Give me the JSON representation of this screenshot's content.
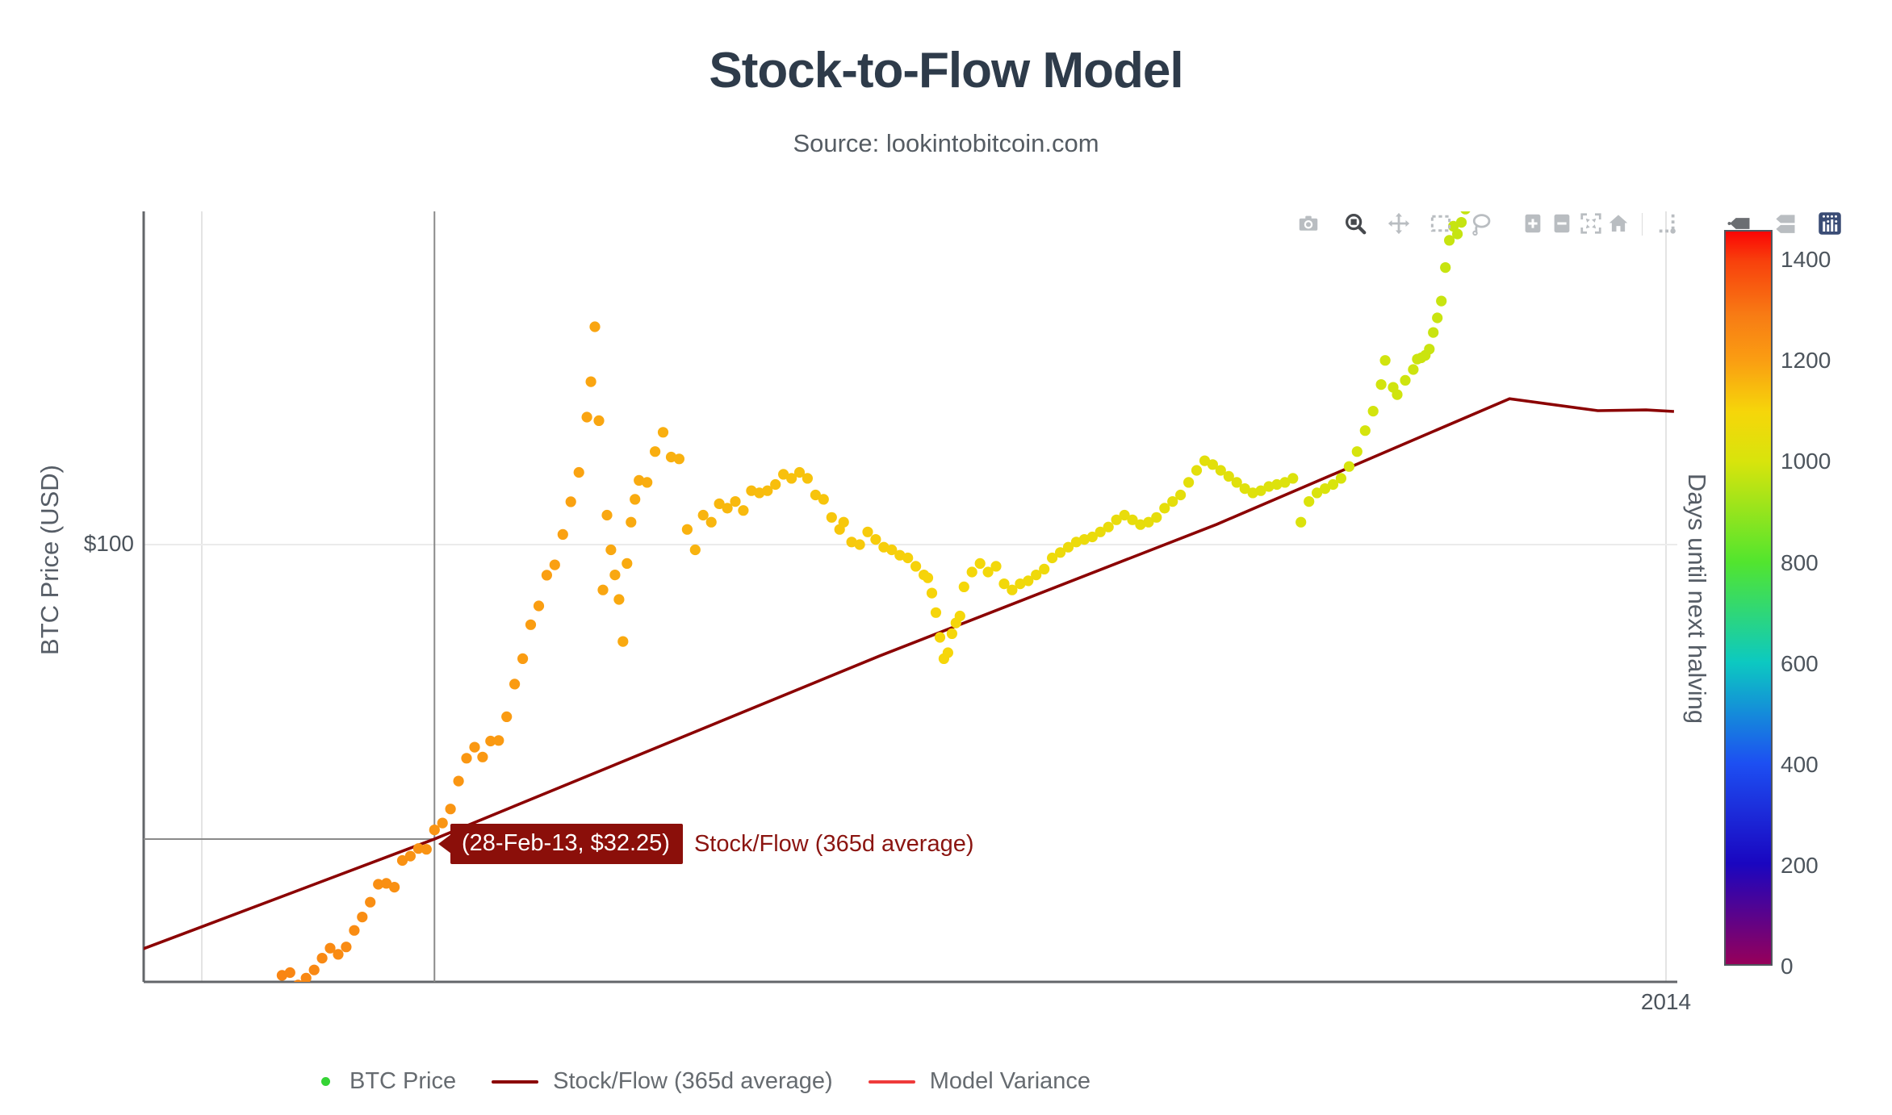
{
  "header": {
    "title": "Stock-to-Flow Model",
    "subtitle": "Source: lookintobitcoin.com"
  },
  "axes": {
    "y": {
      "title": "BTC Price (USD)",
      "tick_labels": [
        "$100"
      ],
      "scale": "log"
    },
    "x": {
      "tick_labels": [
        "2014"
      ],
      "gridline_dates": [
        "2013-01-01",
        "2014-01-01"
      ]
    }
  },
  "modebar": {
    "icons": [
      "camera-icon",
      "zoom-icon",
      "pan-icon",
      "box-select-icon",
      "lasso-icon",
      "zoom-in-icon",
      "zoom-out-icon",
      "autoscale-icon",
      "home-icon",
      "spikelines-icon",
      "hover-closest-icon",
      "hover-compare-icon",
      "plotly-logo-icon"
    ],
    "active_icon": "zoom-icon"
  },
  "tooltip": {
    "text": "(28-Feb-13, $32.25)",
    "series": "Stock/Flow (365d average)",
    "point": {
      "date": "2013-02-28",
      "value": 32.25
    },
    "bg_color": "#8b0f0a"
  },
  "colorbar": {
    "title": "Days until next halving",
    "ticks": [
      1400,
      1200,
      1000,
      800,
      600,
      400,
      200,
      0
    ],
    "max_value": 1458,
    "colorscale": [
      [
        0,
        "#96005a"
      ],
      [
        200,
        "#1a06c0"
      ],
      [
        400,
        "#1d4ff2"
      ],
      [
        600,
        "#0cc9c1"
      ],
      [
        800,
        "#52e52e"
      ],
      [
        1000,
        "#d8e40c"
      ],
      [
        1100,
        "#f6d60a"
      ],
      [
        1200,
        "#fa9e12"
      ],
      [
        1290,
        "#f87c14"
      ],
      [
        1400,
        "#f8400c"
      ],
      [
        1458,
        "#fb0505"
      ]
    ]
  },
  "legend": {
    "items": [
      {
        "label": "BTC Price",
        "marker": "dot",
        "color": "#35d435"
      },
      {
        "label": "Stock/Flow (365d average)",
        "marker": "line",
        "color": "#8b0101"
      },
      {
        "label": "Model Variance",
        "marker": "line",
        "color": "#ef3b3b"
      }
    ]
  },
  "chart_data": {
    "type": "scatter",
    "title": "Stock-to-Flow Model",
    "x_axis": "date (2012-12-17 to 2014-01-04)",
    "y_axis": "BTC Price (USD), log scale, visible range approx 18.6 to 360",
    "color_encoding": "days until next halving (2016-07-09), rainbow colorscale 0-1458",
    "halving_date": "2016-07-09",
    "grid": "single $100 horizontal gridline; yearly vertical gridlines 2013 and 2014",
    "legend_position": "bottom-left horizontal",
    "series": [
      {
        "name": "BTC Price",
        "kind": "colored scatter, approx daily closes (sampled ~2-day)",
        "points": [
          [
            "2013-01-21",
            19.1
          ],
          [
            "2013-01-23",
            19.3
          ],
          [
            "2013-01-25",
            18.4
          ],
          [
            "2013-01-27",
            18.9
          ],
          [
            "2013-01-29",
            19.5
          ],
          [
            "2013-01-31",
            20.4
          ],
          [
            "2013-02-02",
            21.2
          ],
          [
            "2013-02-04",
            20.7
          ],
          [
            "2013-02-06",
            21.3
          ],
          [
            "2013-02-08",
            22.7
          ],
          [
            "2013-02-10",
            23.9
          ],
          [
            "2013-02-12",
            25.3
          ],
          [
            "2013-02-14",
            27.1
          ],
          [
            "2013-02-16",
            27.2
          ],
          [
            "2013-02-18",
            26.8
          ],
          [
            "2013-02-20",
            29.7
          ],
          [
            "2013-02-22",
            30.2
          ],
          [
            "2013-02-24",
            31.1
          ],
          [
            "2013-02-26",
            31.0
          ],
          [
            "2013-02-28",
            33.4
          ],
          [
            "2013-03-02",
            34.3
          ],
          [
            "2013-03-04",
            36.2
          ],
          [
            "2013-03-06",
            40.3
          ],
          [
            "2013-03-08",
            44.0
          ],
          [
            "2013-03-10",
            45.9
          ],
          [
            "2013-03-12",
            44.2
          ],
          [
            "2013-03-14",
            47.0
          ],
          [
            "2013-03-16",
            47.1
          ],
          [
            "2013-03-18",
            51.6
          ],
          [
            "2013-03-20",
            58.5
          ],
          [
            "2013-03-22",
            64.5
          ],
          [
            "2013-03-24",
            73.5
          ],
          [
            "2013-03-26",
            79.0
          ],
          [
            "2013-03-28",
            88.9
          ],
          [
            "2013-03-30",
            92.5
          ],
          [
            "2013-04-01",
            104.0
          ],
          [
            "2013-04-03",
            117.9
          ],
          [
            "2013-04-05",
            132.0
          ],
          [
            "2013-04-07",
            163.2
          ],
          [
            "2013-04-08",
            187.0
          ],
          [
            "2013-04-09",
            231.0
          ],
          [
            "2013-04-10",
            161.0
          ],
          [
            "2013-04-11",
            84.0
          ],
          [
            "2013-04-12",
            112.0
          ],
          [
            "2013-04-13",
            98.0
          ],
          [
            "2013-04-14",
            89.0
          ],
          [
            "2013-04-15",
            81.0
          ],
          [
            "2013-04-16",
            68.9
          ],
          [
            "2013-04-17",
            93.0
          ],
          [
            "2013-04-18",
            109.0
          ],
          [
            "2013-04-19",
            119.0
          ],
          [
            "2013-04-20",
            128.0
          ],
          [
            "2013-04-22",
            127.0
          ],
          [
            "2013-04-24",
            143.0
          ],
          [
            "2013-04-26",
            154.0
          ],
          [
            "2013-04-28",
            140.0
          ],
          [
            "2013-04-30",
            139.0
          ],
          [
            "2013-05-02",
            106.0
          ],
          [
            "2013-05-04",
            98.0
          ],
          [
            "2013-05-06",
            112.0
          ],
          [
            "2013-05-08",
            109.0
          ],
          [
            "2013-05-10",
            117.0
          ],
          [
            "2013-05-12",
            115.0
          ],
          [
            "2013-05-14",
            118.0
          ],
          [
            "2013-05-16",
            114.0
          ],
          [
            "2013-05-18",
            123.0
          ],
          [
            "2013-05-20",
            122.0
          ],
          [
            "2013-05-22",
            123.0
          ],
          [
            "2013-05-24",
            126.0
          ],
          [
            "2013-05-26",
            131.0
          ],
          [
            "2013-05-28",
            129.0
          ],
          [
            "2013-05-30",
            132.0
          ],
          [
            "2013-06-01",
            129.0
          ],
          [
            "2013-06-03",
            121.0
          ],
          [
            "2013-06-05",
            119.0
          ],
          [
            "2013-06-07",
            111.0
          ],
          [
            "2013-06-09",
            106.0
          ],
          [
            "2013-06-10",
            109.0
          ],
          [
            "2013-06-12",
            101.0
          ],
          [
            "2013-06-14",
            100.0
          ],
          [
            "2013-06-16",
            105.0
          ],
          [
            "2013-06-18",
            102.0
          ],
          [
            "2013-06-20",
            99.0
          ],
          [
            "2013-06-22",
            98.0
          ],
          [
            "2013-06-24",
            96.0
          ],
          [
            "2013-06-26",
            95.0
          ],
          [
            "2013-06-28",
            92.0
          ],
          [
            "2013-06-30",
            89.0
          ],
          [
            "2013-07-01",
            88.0
          ],
          [
            "2013-07-02",
            83.0
          ],
          [
            "2013-07-03",
            77.0
          ],
          [
            "2013-07-04",
            70.0
          ],
          [
            "2013-07-05",
            64.5
          ],
          [
            "2013-07-06",
            66.0
          ],
          [
            "2013-07-07",
            71.0
          ],
          [
            "2013-07-08",
            74.0
          ],
          [
            "2013-07-09",
            76.0
          ],
          [
            "2013-07-10",
            85.0
          ],
          [
            "2013-07-12",
            90.0
          ],
          [
            "2013-07-14",
            93.0
          ],
          [
            "2013-07-16",
            90.0
          ],
          [
            "2013-07-18",
            92.0
          ],
          [
            "2013-07-20",
            86.0
          ],
          [
            "2013-07-22",
            84.0
          ],
          [
            "2013-07-24",
            86.0
          ],
          [
            "2013-07-26",
            87.0
          ],
          [
            "2013-07-28",
            89.0
          ],
          [
            "2013-07-30",
            91.0
          ],
          [
            "2013-08-01",
            95.0
          ],
          [
            "2013-08-03",
            97.0
          ],
          [
            "2013-08-05",
            99.0
          ],
          [
            "2013-08-07",
            101.0
          ],
          [
            "2013-08-09",
            102.0
          ],
          [
            "2013-08-11",
            103.0
          ],
          [
            "2013-08-13",
            105.0
          ],
          [
            "2013-08-15",
            107.0
          ],
          [
            "2013-08-17",
            110.0
          ],
          [
            "2013-08-19",
            112.0
          ],
          [
            "2013-08-21",
            110.0
          ],
          [
            "2013-08-23",
            108.0
          ],
          [
            "2013-08-25",
            109.0
          ],
          [
            "2013-08-27",
            111.0
          ],
          [
            "2013-08-29",
            115.0
          ],
          [
            "2013-08-31",
            118.0
          ],
          [
            "2013-09-02",
            121.0
          ],
          [
            "2013-09-04",
            127.0
          ],
          [
            "2013-09-06",
            133.0
          ],
          [
            "2013-09-08",
            138.0
          ],
          [
            "2013-09-10",
            136.0
          ],
          [
            "2013-09-12",
            133.0
          ],
          [
            "2013-09-14",
            130.0
          ],
          [
            "2013-09-16",
            127.0
          ],
          [
            "2013-09-18",
            124.0
          ],
          [
            "2013-09-20",
            122.0
          ],
          [
            "2013-09-22",
            123.0
          ],
          [
            "2013-09-24",
            125.0
          ],
          [
            "2013-09-26",
            126.0
          ],
          [
            "2013-09-28",
            127.0
          ],
          [
            "2013-09-30",
            129.0
          ],
          [
            "2013-10-02",
            109.0
          ],
          [
            "2013-10-04",
            118.0
          ],
          [
            "2013-10-06",
            122.0
          ],
          [
            "2013-10-08",
            124.0
          ],
          [
            "2013-10-10",
            126.0
          ],
          [
            "2013-10-12",
            129.0
          ],
          [
            "2013-10-14",
            135.0
          ],
          [
            "2013-10-16",
            143.0
          ],
          [
            "2013-10-18",
            155.0
          ],
          [
            "2013-10-20",
            167.0
          ],
          [
            "2013-10-22",
            185.0
          ],
          [
            "2013-10-23",
            203.0
          ],
          [
            "2013-10-25",
            183.0
          ],
          [
            "2013-10-26",
            178.0
          ],
          [
            "2013-10-28",
            188.0
          ],
          [
            "2013-10-30",
            196.0
          ],
          [
            "2013-10-31",
            204.0
          ],
          [
            "2013-11-01",
            205.0
          ],
          [
            "2013-11-02",
            207.0
          ],
          [
            "2013-11-03",
            212.0
          ],
          [
            "2013-11-04",
            226.0
          ],
          [
            "2013-11-05",
            239.0
          ],
          [
            "2013-11-06",
            255.0
          ],
          [
            "2013-11-07",
            290.0
          ],
          [
            "2013-11-08",
            322.0
          ],
          [
            "2013-11-09",
            340.0
          ],
          [
            "2013-11-10",
            330.0
          ],
          [
            "2013-11-11",
            345.0
          ],
          [
            "2013-11-12",
            363.0
          ],
          [
            "2013-11-13",
            400.0
          ]
        ]
      },
      {
        "name": "Stock/Flow (365d average)",
        "kind": "line",
        "color": "#8b0101",
        "points": [
          [
            "2012-12-17",
            21.1
          ],
          [
            "2013-02-28",
            32.25
          ],
          [
            "2013-06-19",
            65.2
          ],
          [
            "2013-09-11",
            108.1
          ],
          [
            "2013-11-23",
            175.2
          ],
          [
            "2013-12-15",
            167.3
          ],
          [
            "2013-12-27",
            167.8
          ],
          [
            "2014-01-03",
            166.8
          ]
        ]
      },
      {
        "name": "Model Variance",
        "kind": "line",
        "color": "#ef3b3b",
        "points": []
      }
    ],
    "hover_point": {
      "date": "2013-02-28",
      "value": 32.25,
      "label": "(28-Feb-13, $32.25)"
    }
  }
}
